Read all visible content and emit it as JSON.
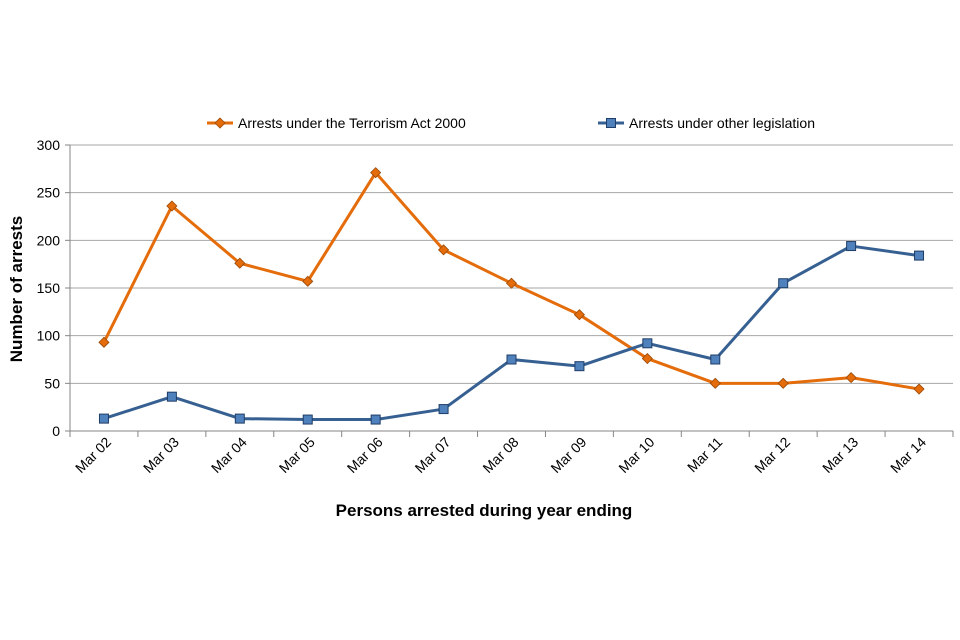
{
  "chart_data": {
    "type": "line",
    "title": "",
    "xlabel": "Persons arrested during year ending",
    "ylabel": "Number of arrests",
    "categories": [
      "Mar 02",
      "Mar 03",
      "Mar 04",
      "Mar 05",
      "Mar 06",
      "Mar 07",
      "Mar 08",
      "Mar 09",
      "Mar 10",
      "Mar 11",
      "Mar 12",
      "Mar 13",
      "Mar 14"
    ],
    "ylim": [
      0,
      300
    ],
    "yticks": [
      0,
      50,
      100,
      150,
      200,
      250,
      300
    ],
    "grid": true,
    "legend_position": "top",
    "series": [
      {
        "name": "Arrests under the Terrorism Act 2000",
        "color": "#e46c0a",
        "marker": "diamond",
        "marker_color": "#e46c0a",
        "values": [
          93,
          236,
          176,
          157,
          271,
          190,
          155,
          122,
          76,
          50,
          50,
          56,
          44
        ]
      },
      {
        "name": "Arrests under other legislation",
        "color": "#376092",
        "marker": "square",
        "marker_color": "#4f81bd",
        "values": [
          13,
          36,
          13,
          12,
          12,
          23,
          75,
          68,
          92,
          75,
          155,
          194,
          184
        ]
      }
    ]
  }
}
